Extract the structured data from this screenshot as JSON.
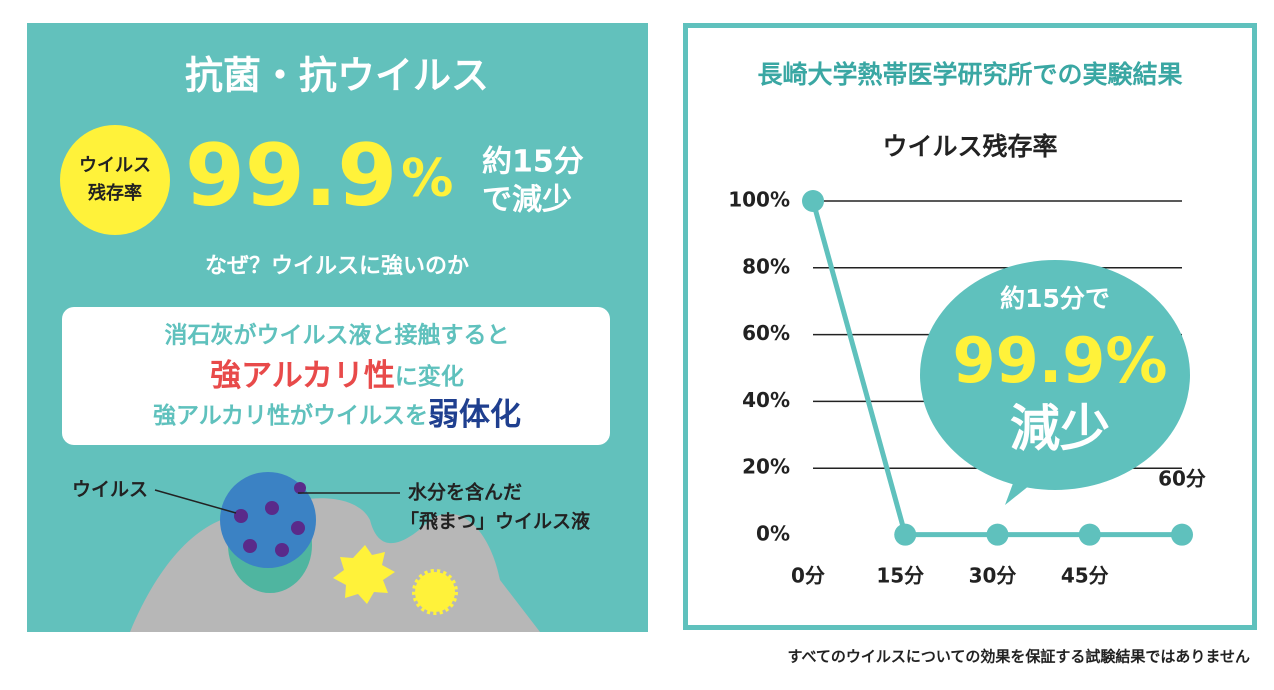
{
  "left_panel": {
    "title": "抗菌・抗ウイルス",
    "badge": [
      "ウイルス",
      "残存率"
    ],
    "big_number": "99.9",
    "big_unit": "%",
    "side": [
      "約15分",
      "で減少"
    ],
    "question": "なぜ？ウイルスに強いのか",
    "box": {
      "line1": "消石灰がウイルス液と接触すると",
      "line2a": "強アルカリ性",
      "line2b": "に変化",
      "line3a": "強アルカリ性がウイルスを",
      "line3b": "弱体化"
    },
    "label_virus": "ウイルス",
    "label_droplet": [
      "水分を含んだ",
      "「飛まつ」ウイルス液"
    ]
  },
  "panel_title": "長崎大学熱帯医学研究所での実験結果",
  "chart_data": {
    "type": "line",
    "title": "ウイルス残存率",
    "categories": [
      "0分",
      "15分",
      "30分",
      "45分",
      "60分"
    ],
    "values": [
      100,
      0.1,
      0.1,
      0.1,
      0.1
    ],
    "color": "#5fc1bd",
    "ylim": [
      0,
      100
    ],
    "yticks": [
      {
        "value": 0,
        "label": "0%"
      },
      {
        "value": 20,
        "label": "20%"
      },
      {
        "value": 40,
        "label": "40%"
      },
      {
        "value": 60,
        "label": "60%"
      },
      {
        "value": 80,
        "label": "80%"
      },
      {
        "value": 100,
        "label": "100%"
      }
    ],
    "grid": true,
    "bubble": {
      "line1": "約15分で",
      "line2": "99.9%",
      "line3": "減少"
    }
  },
  "footnote": "すべてのウイルスについての効果を保証する試験結果ではありません"
}
